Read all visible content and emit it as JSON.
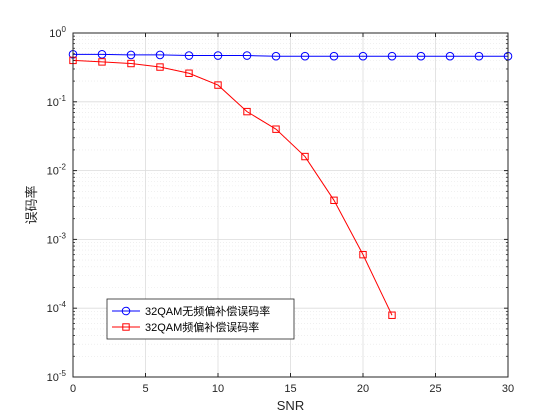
{
  "chart_data": {
    "type": "line",
    "title": "",
    "xlabel": "SNR",
    "ylabel": "误码率",
    "xlim": [
      0,
      30
    ],
    "ylim": [
      1e-05,
      1
    ],
    "yscale": "log",
    "grid": true,
    "x_ticks": [
      "0",
      "5",
      "10",
      "15",
      "20",
      "25",
      "30"
    ],
    "y_ticks": [
      {
        "base": "10",
        "exp": "0"
      },
      {
        "base": "10",
        "exp": "-1"
      },
      {
        "base": "10",
        "exp": "-2"
      },
      {
        "base": "10",
        "exp": "-3"
      },
      {
        "base": "10",
        "exp": "-4"
      },
      {
        "base": "10",
        "exp": "-5"
      }
    ],
    "legend_position": "bottom-left",
    "series": [
      {
        "name": "32QAM无频偏补偿误码率",
        "color": "#0000ff",
        "marker": "circle",
        "x": [
          0,
          2,
          4,
          6,
          8,
          10,
          12,
          14,
          16,
          18,
          20,
          22,
          24,
          26,
          28,
          30
        ],
        "y": [
          0.49,
          0.49,
          0.48,
          0.48,
          0.47,
          0.47,
          0.47,
          0.46,
          0.46,
          0.46,
          0.46,
          0.46,
          0.46,
          0.46,
          0.46,
          0.46
        ]
      },
      {
        "name": "32QAM频偏补偿误码率",
        "color": "#ff0000",
        "marker": "square",
        "x": [
          0,
          2,
          4,
          6,
          8,
          10,
          12,
          14,
          16,
          18,
          20,
          22
        ],
        "y": [
          0.4,
          0.38,
          0.36,
          0.32,
          0.26,
          0.175,
          0.072,
          0.04,
          0.016,
          0.0037,
          0.0006,
          7.9e-05
        ]
      }
    ]
  }
}
